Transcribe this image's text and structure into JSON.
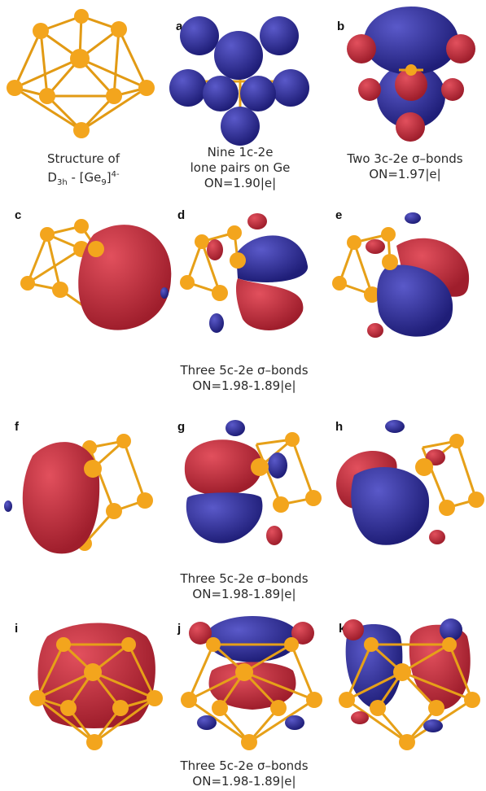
{
  "colors": {
    "blue": "#31309a",
    "red": "#c9303f",
    "gold": "#f0a21a",
    "bond": "#e6a018"
  },
  "panels": {
    "a": "a",
    "b": "b",
    "c": "c",
    "d": "d",
    "e": "e",
    "f": "f",
    "g": "g",
    "h": "h",
    "i": "i",
    "j": "j",
    "k": "k"
  },
  "captions": {
    "structure_line1": "Structure of",
    "structure_line2_pre": "D",
    "structure_line2_sub": "3h",
    "structure_line2_mid": " - [Ge",
    "structure_line2_sub2": "9",
    "structure_line2_post": "]",
    "structure_line2_sup": "4-",
    "lone_line1": "Nine 1c-2e",
    "lone_line2": "lone pairs on Ge",
    "lone_line3": "ON=1.90|e|",
    "three_c_line1": "Two 3c-2e σ–bonds",
    "three_c_line2": "ON=1.97|e|",
    "row2_line1": "Three 5c-2e σ–bonds",
    "row2_line2": "ON=1.98-1.89|e|",
    "row3_line1": "Three 5c-2e σ–bonds",
    "row3_line2": "ON=1.98-1.89|e|",
    "row4_line1": "Three 5c-2e σ–bonds",
    "row4_line2": "ON=1.98-1.89|e|"
  }
}
